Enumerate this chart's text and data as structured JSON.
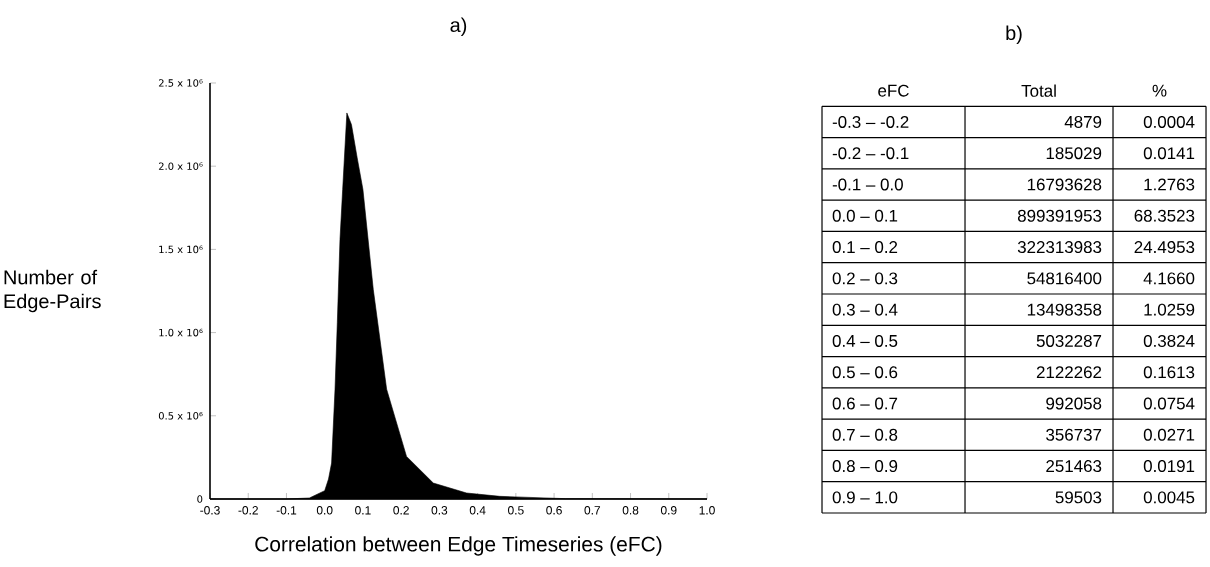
{
  "chart_data": [
    {
      "type": "area",
      "title": "a)",
      "xlabel": "Correlation between Edge Timeseries (eFC)",
      "ylabel": "Number of Edge-Pairs",
      "color": "#000000",
      "x": [
        -0.3,
        -0.1,
        -0.04,
        0.0,
        0.01,
        0.018,
        0.027,
        0.033,
        0.04,
        0.047,
        0.058,
        0.07,
        0.085,
        0.1,
        0.127,
        0.162,
        0.214,
        0.284,
        0.371,
        0.458,
        0.63,
        1.0
      ],
      "values": [
        0,
        0,
        6000,
        50000,
        120000,
        216000,
        660000,
        1060000,
        1560000,
        1860000,
        2320000,
        2250000,
        2050000,
        1860000,
        1260000,
        660000,
        256000,
        96000,
        36000,
        16000,
        2000,
        0
      ],
      "xlim": [
        -0.3,
        1.0
      ],
      "ylim": [
        0,
        2500000
      ],
      "xticks": [
        -0.3,
        -0.2,
        -0.1,
        {
          "value": 0,
          "label": "0.0"
        },
        0.1,
        0.2,
        0.3,
        0.4,
        0.5,
        0.6,
        0.7,
        0.8,
        0.9,
        {
          "value": 1,
          "label": "1.0"
        }
      ],
      "yticks": [
        0,
        {
          "value": 500000,
          "label": "0.5 x 10⁶"
        },
        {
          "value": 1000000,
          "label": "1.0 x 10⁶"
        },
        {
          "value": 1500000,
          "label": "1.5 x 10⁶"
        },
        {
          "value": 2000000,
          "label": "2.0 x 10⁶"
        },
        {
          "value": 2500000,
          "label": "2.5 x 10⁶"
        }
      ]
    },
    {
      "type": "other",
      "title": "b)",
      "xlabel": "eFC",
      "data_labels": true,
      "categories": [
        "-0.3 – -0.2",
        "-0.2 – -0.1",
        "-0.1 –  0.0",
        "0.0 – 0.1",
        "0.1 – 0.2",
        "0.2 – 0.3",
        "0.3 – 0.4",
        "0.4 – 0.5",
        "0.5 – 0.6",
        "0.6 – 0.7",
        "0.7 – 0.8",
        "0.8 – 0.9",
        "0.9 – 1.0"
      ],
      "series": [
        {
          "name": "Total",
          "values": [
            4879,
            185029,
            16793628,
            899391953,
            322313983,
            54816400,
            13498358,
            5032287,
            2122262,
            992058,
            356737,
            251463,
            59503
          ]
        },
        {
          "name": "%",
          "values": [
            0.0004,
            0.0141,
            1.2763,
            68.3523,
            24.4953,
            4.166,
            1.0259,
            0.3824,
            0.1613,
            0.0754,
            0.0271,
            0.0191,
            0.0045
          ],
          "value_labels": [
            "0.0004",
            "0.0141",
            "1.2763",
            "68.3523",
            "24.4953",
            "4.1660",
            "1.0259",
            "0.3824",
            "0.1613",
            "0.0754",
            "0.0271",
            "0.0191",
            "0.0045"
          ]
        }
      ]
    }
  ]
}
